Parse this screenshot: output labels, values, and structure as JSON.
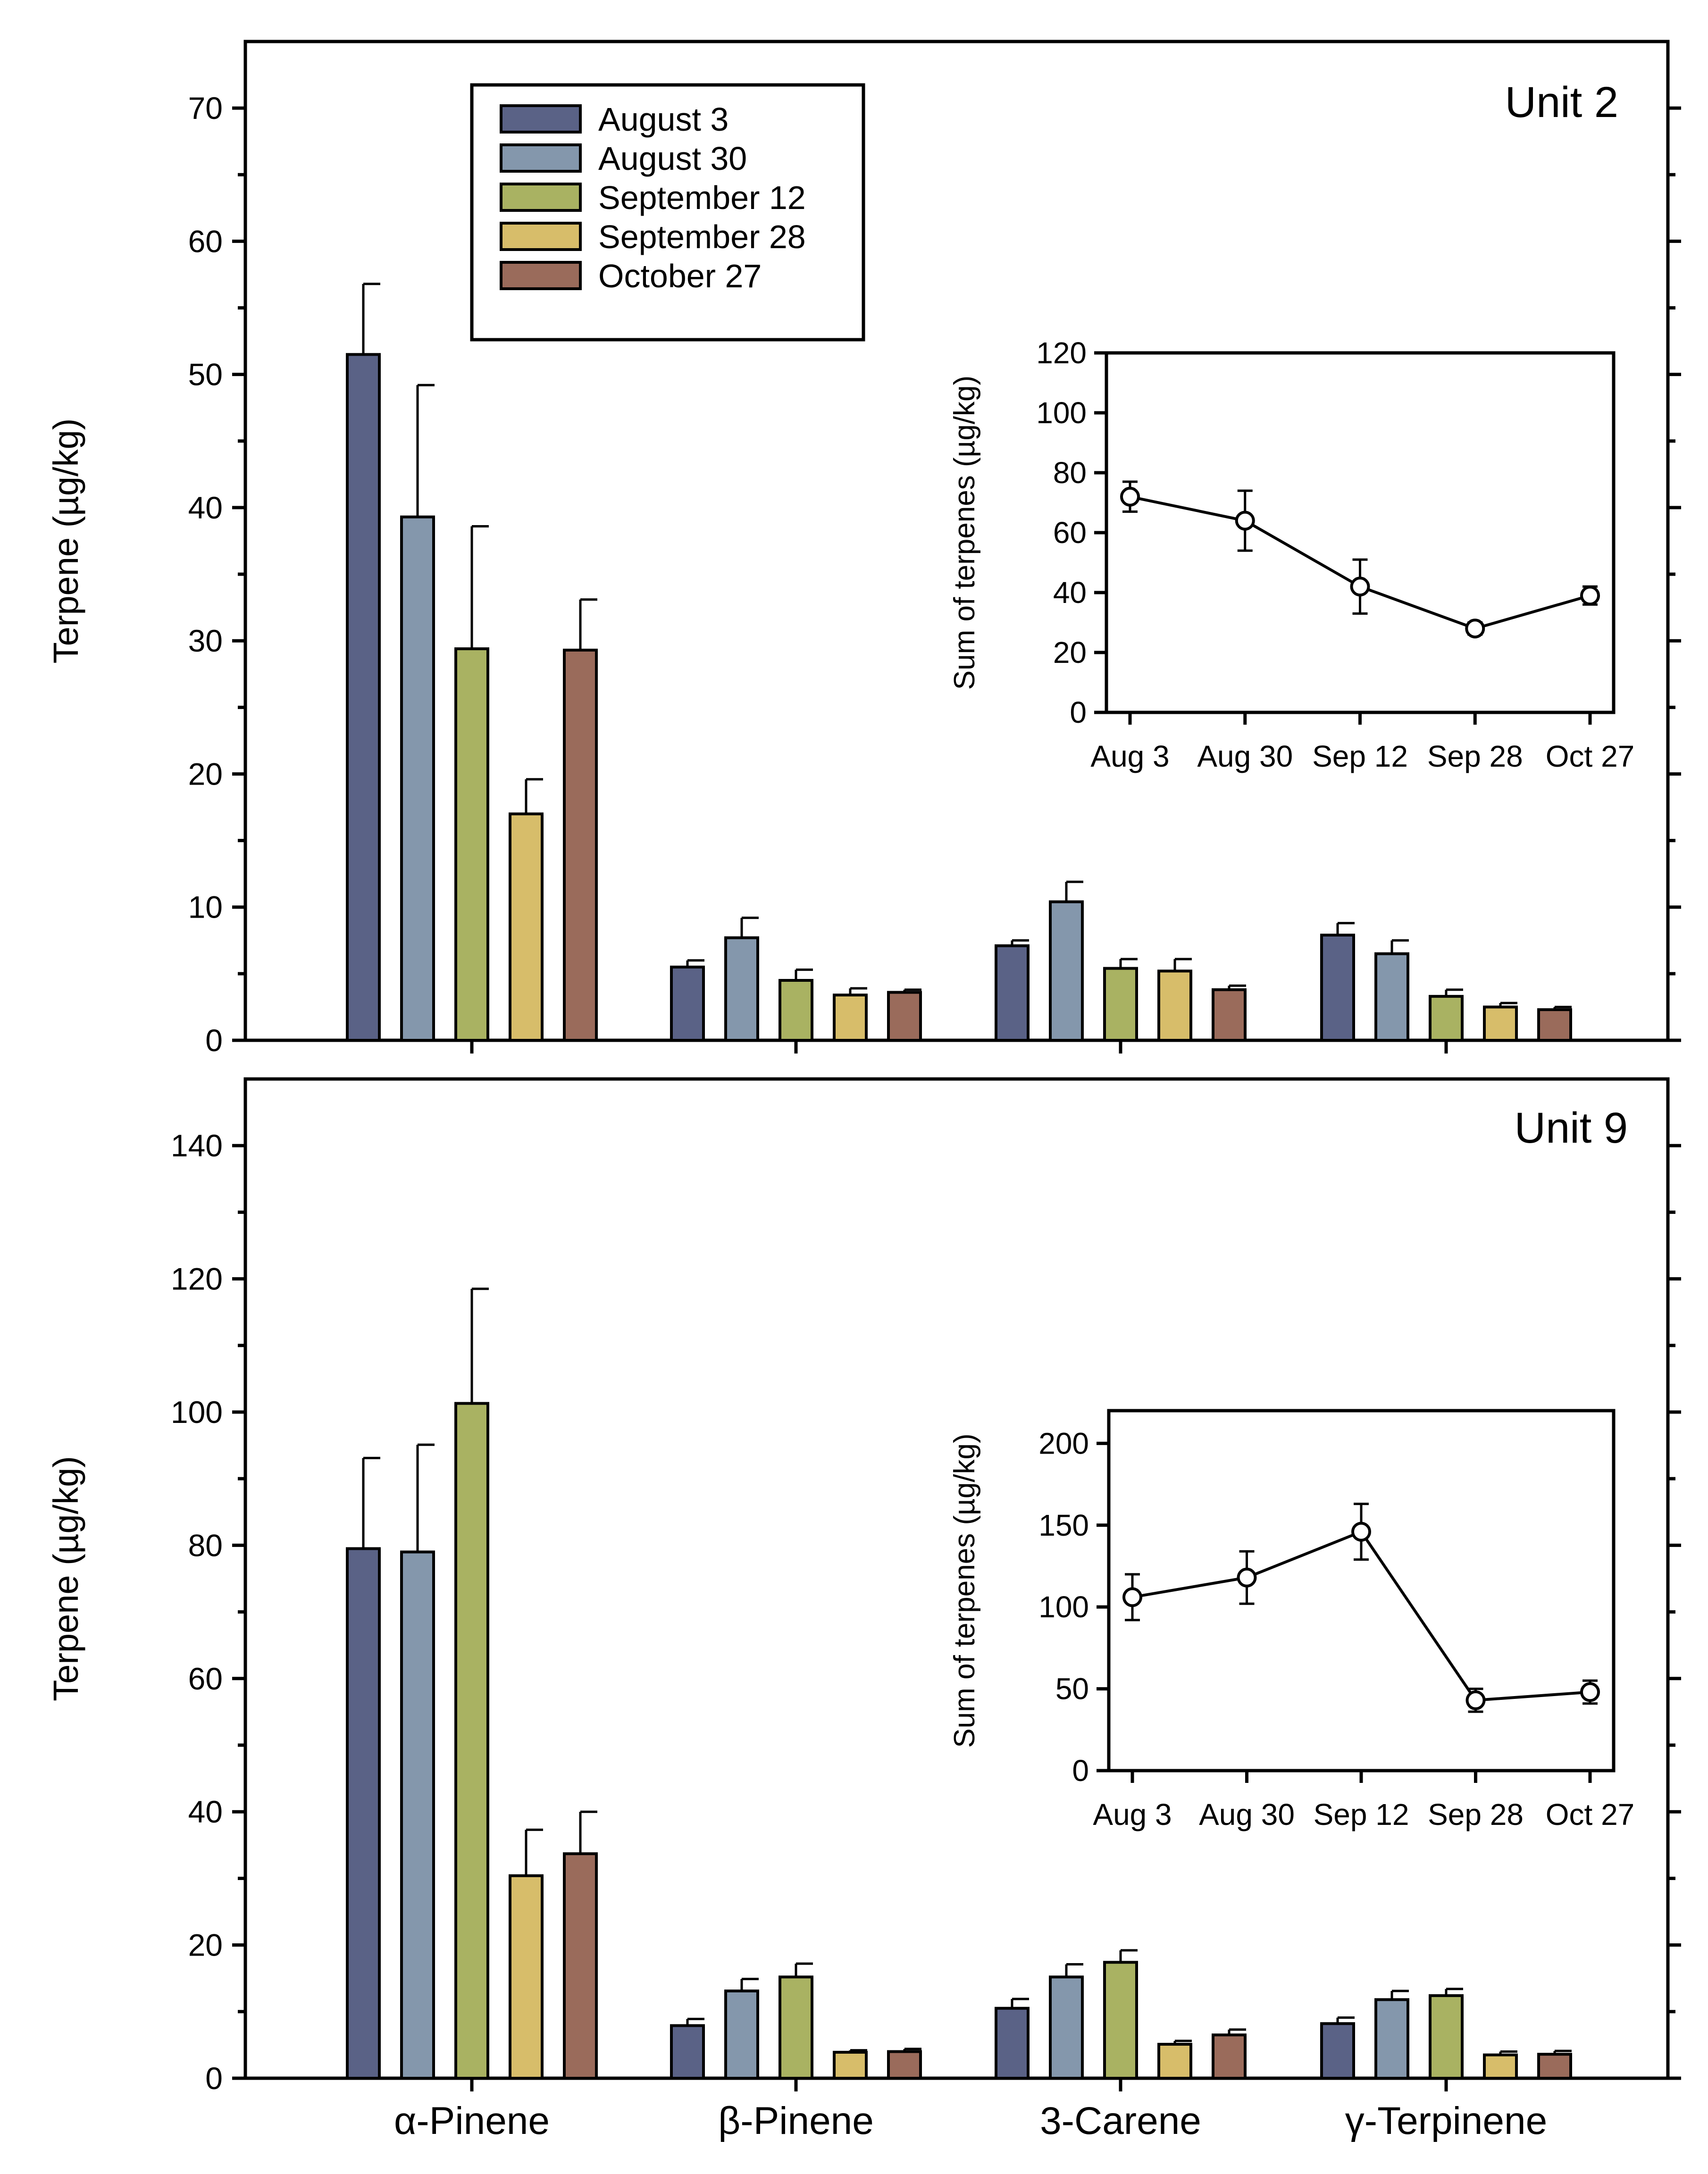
{
  "colors": {
    "August 3": "#5a6286",
    "August 30": "#8497ac",
    "September 12": "#a9b262",
    "September 28": "#d7bd6a",
    "October 27": "#9a6b5b"
  },
  "chart_data": [
    {
      "id": "unit2",
      "type": "bar",
      "title": "Unit 2",
      "ylabel": "Terpene (µg/kg)",
      "xlabel": "",
      "ylim": [
        0,
        75
      ],
      "yticks": [
        0,
        10,
        20,
        30,
        40,
        50,
        60,
        70
      ],
      "categories": [
        "α-Pinene",
        "β-Pinene",
        "3-Carene",
        "γ-Terpinene"
      ],
      "legend": {
        "placement": "top-left",
        "entries": [
          "August 3",
          "August 30",
          "September 12",
          "September 28",
          "October 27"
        ]
      },
      "series": [
        {
          "name": "August 3",
          "values": [
            51.5,
            5.5,
            7.1,
            7.9
          ],
          "errors": [
            5.3,
            0.5,
            0.4,
            0.9
          ]
        },
        {
          "name": "August 30",
          "values": [
            39.3,
            7.7,
            10.4,
            6.5
          ],
          "errors": [
            9.9,
            1.5,
            1.5,
            1.0
          ]
        },
        {
          "name": "September 12",
          "values": [
            29.4,
            4.5,
            5.4,
            3.3
          ],
          "errors": [
            9.2,
            0.8,
            0.7,
            0.5
          ]
        },
        {
          "name": "September 28",
          "values": [
            17.0,
            3.4,
            5.2,
            2.5
          ],
          "errors": [
            2.6,
            0.5,
            0.9,
            0.3
          ]
        },
        {
          "name": "October 27",
          "values": [
            29.3,
            3.6,
            3.8,
            2.3
          ],
          "errors": [
            3.8,
            0.2,
            0.3,
            0.2
          ]
        }
      ],
      "inset": {
        "type": "line",
        "ylabel": "Sum of terpenes (µg/kg)",
        "ylim": [
          0,
          120
        ],
        "yticks": [
          0,
          20,
          40,
          60,
          80,
          100,
          120
        ],
        "categories": [
          "Aug 3",
          "Aug 30",
          "Sep 12",
          "Sep 28",
          "Oct 27"
        ],
        "values": [
          72,
          64,
          42,
          28,
          39
        ],
        "errors": [
          5,
          10,
          9,
          2,
          3
        ]
      }
    },
    {
      "id": "unit9",
      "type": "bar",
      "title": "Unit 9",
      "ylabel": "Terpene (µg/kg)",
      "xlabel": "",
      "ylim": [
        0,
        150
      ],
      "yticks": [
        0,
        20,
        40,
        60,
        80,
        100,
        120,
        140
      ],
      "categories": [
        "α-Pinene",
        "β-Pinene",
        "3-Carene",
        "γ-Terpinene"
      ],
      "series": [
        {
          "name": "August 3",
          "values": [
            79.5,
            7.9,
            10.5,
            8.2
          ],
          "errors": [
            13.6,
            1.0,
            1.4,
            0.9
          ]
        },
        {
          "name": "August 30",
          "values": [
            79.0,
            13.1,
            15.2,
            11.8
          ],
          "errors": [
            16.1,
            1.8,
            1.9,
            1.3
          ]
        },
        {
          "name": "September 12",
          "values": [
            101.3,
            15.2,
            17.4,
            12.4
          ],
          "errors": [
            17.2,
            2.0,
            1.8,
            1.0
          ]
        },
        {
          "name": "September 28",
          "values": [
            30.4,
            3.9,
            5.1,
            3.5
          ],
          "errors": [
            6.9,
            0.3,
            0.5,
            0.5
          ]
        },
        {
          "name": "October 27",
          "values": [
            33.7,
            4.0,
            6.5,
            3.6
          ],
          "errors": [
            6.3,
            0.4,
            0.8,
            0.5
          ]
        }
      ],
      "inset": {
        "type": "line",
        "ylabel": "Sum of terpenes (µg/kg)",
        "ylim": [
          0,
          220
        ],
        "yticks": [
          0,
          50,
          100,
          150,
          200
        ],
        "categories": [
          "Aug 3",
          "Aug 30",
          "Sep 12",
          "Sep 28",
          "Oct 27"
        ],
        "values": [
          106,
          118,
          146,
          43,
          48
        ],
        "errors": [
          14,
          16,
          17,
          7,
          7
        ]
      }
    }
  ]
}
